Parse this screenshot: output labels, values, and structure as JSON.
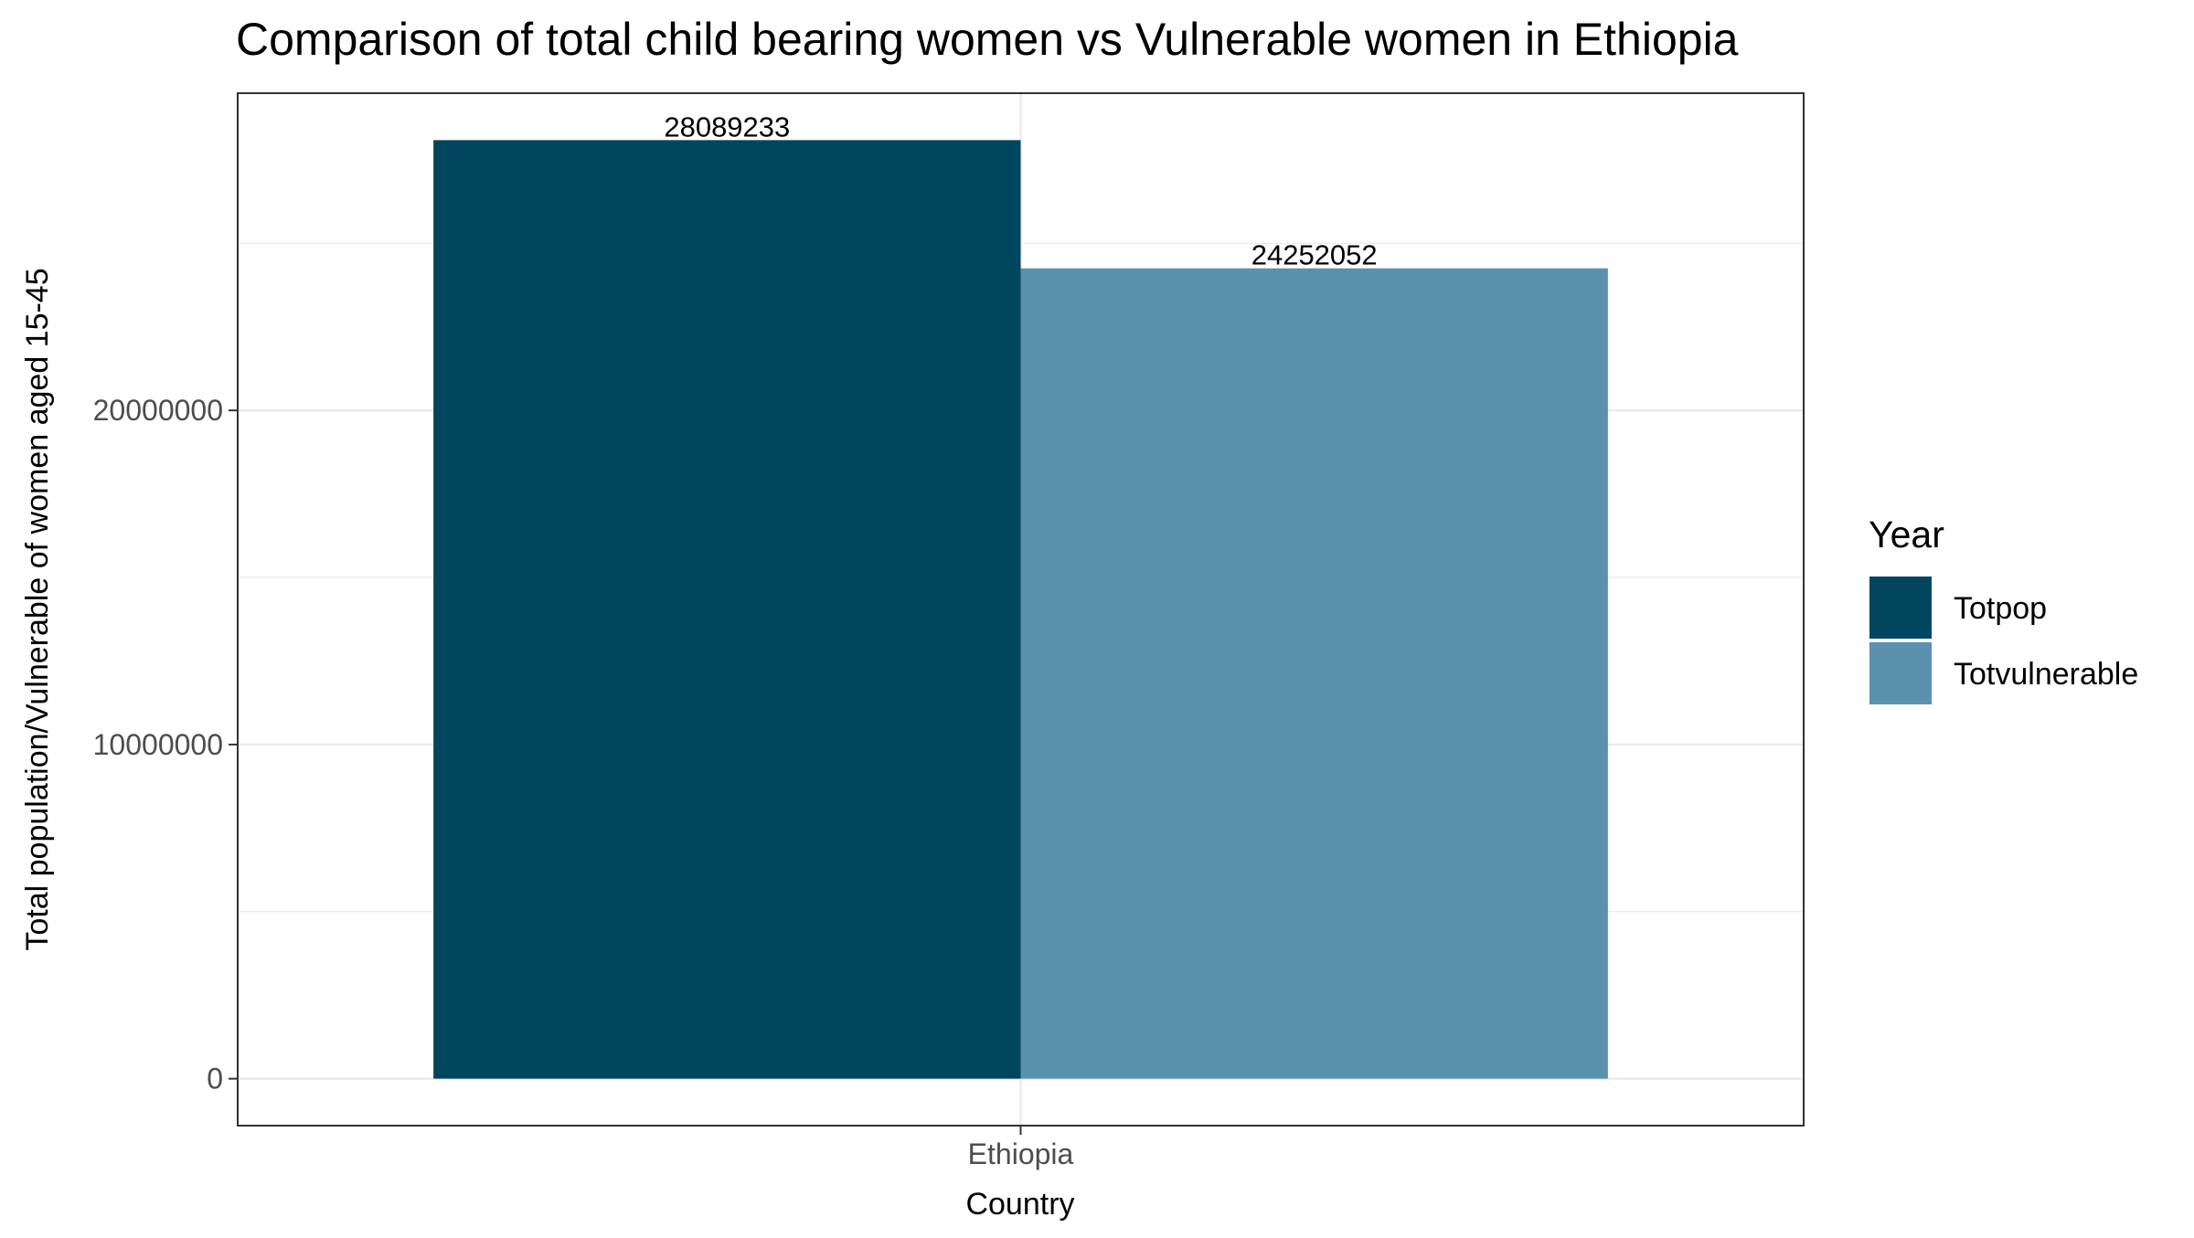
{
  "chart_data": {
    "type": "bar",
    "title": "Comparison of total child bearing women vs Vulnerable women in Ethiopia",
    "xlabel": "Country",
    "ylabel": "Total population/Vulnerable of women aged 15-45",
    "categories": [
      "Ethiopia"
    ],
    "series": [
      {
        "name": "Totpop",
        "values": [
          28089233
        ],
        "color": "#01455F",
        "label": "28089233"
      },
      {
        "name": "Totvulnerable",
        "values": [
          24252052
        ],
        "color": "#5991AE",
        "label": "24252052"
      }
    ],
    "legend": {
      "title": "Year",
      "placement": "right"
    },
    "yticks": [
      {
        "value": 0,
        "label": "0"
      },
      {
        "value": 10000000,
        "label": "10000000"
      },
      {
        "value": 20000000,
        "label": "20000000"
      }
    ],
    "ylim": [
      -1404462,
      29493695
    ],
    "grid": true
  }
}
